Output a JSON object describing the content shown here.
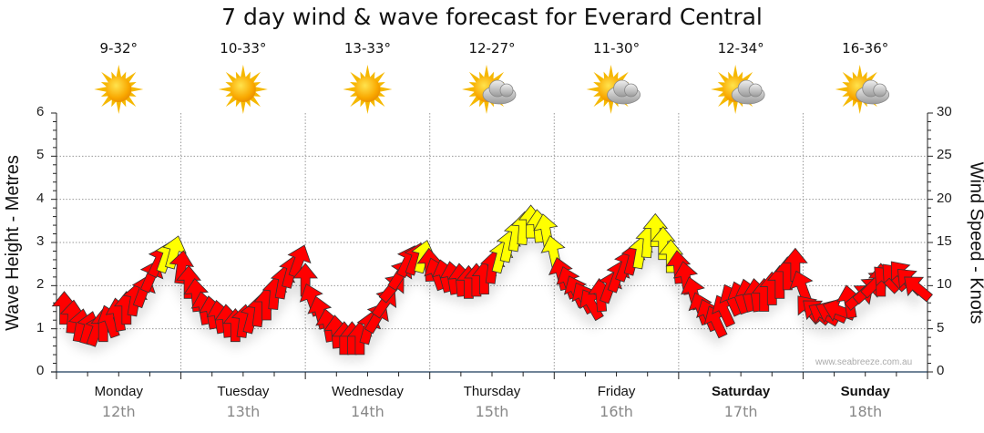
{
  "chart_data": {
    "type": "scatter",
    "title": "7 day wind & wave forecast for Everard Central",
    "ylabel_left": "Wave Height - Metres",
    "ylabel_right": "Wind Speed - Knots",
    "ylim_left": [
      0,
      6
    ],
    "ylim_right": [
      0,
      30
    ],
    "yticks_left": [
      "0",
      "1",
      "2",
      "3",
      "4",
      "5",
      "6"
    ],
    "yticks_right": [
      "0",
      "5",
      "10",
      "15",
      "20",
      "25",
      "30"
    ],
    "grid": true,
    "watermark": "www.seabreeze.com.au",
    "days": [
      {
        "name": "Monday",
        "date": "12th",
        "temp": "9-32°",
        "icon": "sunny-icon",
        "bold": false
      },
      {
        "name": "Tuesday",
        "date": "13th",
        "temp": "10-33°",
        "icon": "sunny-icon",
        "bold": false
      },
      {
        "name": "Wednesday",
        "date": "14th",
        "temp": "13-33°",
        "icon": "sunny-icon",
        "bold": false
      },
      {
        "name": "Thursday",
        "date": "15th",
        "temp": "12-27°",
        "icon": "partly-cloudy-icon",
        "bold": false
      },
      {
        "name": "Friday",
        "date": "16th",
        "temp": "11-30°",
        "icon": "partly-cloudy-icon",
        "bold": false
      },
      {
        "name": "Saturday",
        "date": "17th",
        "temp": "12-34°",
        "icon": "partly-cloudy-icon",
        "bold": true
      },
      {
        "name": "Sunday",
        "date": "18th",
        "temp": "16-36°",
        "icon": "partly-cloudy-icon",
        "bold": true
      }
    ],
    "wind_threshold_knots": 13,
    "colors": {
      "low": "#ff0000",
      "high": "#ffff00",
      "grid": "#999999",
      "axis": "#1a3a5a"
    },
    "series": [
      {
        "name": "Wind Speed (knots)",
        "interval_hours": 3,
        "values": [
          7,
          5,
          4.5,
          5.5,
          7,
          9,
          12.5,
          13.5,
          10,
          7,
          6,
          5,
          6,
          7.5,
          10,
          12.5,
          8,
          5,
          3.5,
          3.5,
          6,
          9.5,
          12.5,
          13,
          11,
          10.5,
          10,
          10.5,
          13,
          15.5,
          17,
          16,
          11,
          9,
          7.5,
          9.5,
          12,
          13.5,
          16,
          13,
          10.5,
          7,
          5.5,
          8,
          8.5,
          8.5,
          10,
          12,
          7,
          6.5,
          7,
          8.5,
          10,
          10.5,
          11,
          9.5
        ],
        "direction_deg": [
          0,
          10,
          20,
          -20,
          0,
          20,
          25,
          15,
          0,
          -10,
          -10,
          0,
          15,
          0,
          10,
          20,
          -20,
          -10,
          0,
          0,
          30,
          40,
          25,
          15,
          -20,
          -10,
          0,
          0,
          15,
          10,
          0,
          -10,
          -15,
          -25,
          -30,
          20,
          20,
          10,
          0,
          0,
          -10,
          -20,
          -25,
          -25,
          -15,
          0,
          0,
          0,
          -40,
          -60,
          -70,
          50,
          45,
          -45,
          -40,
          -50
        ]
      }
    ]
  }
}
